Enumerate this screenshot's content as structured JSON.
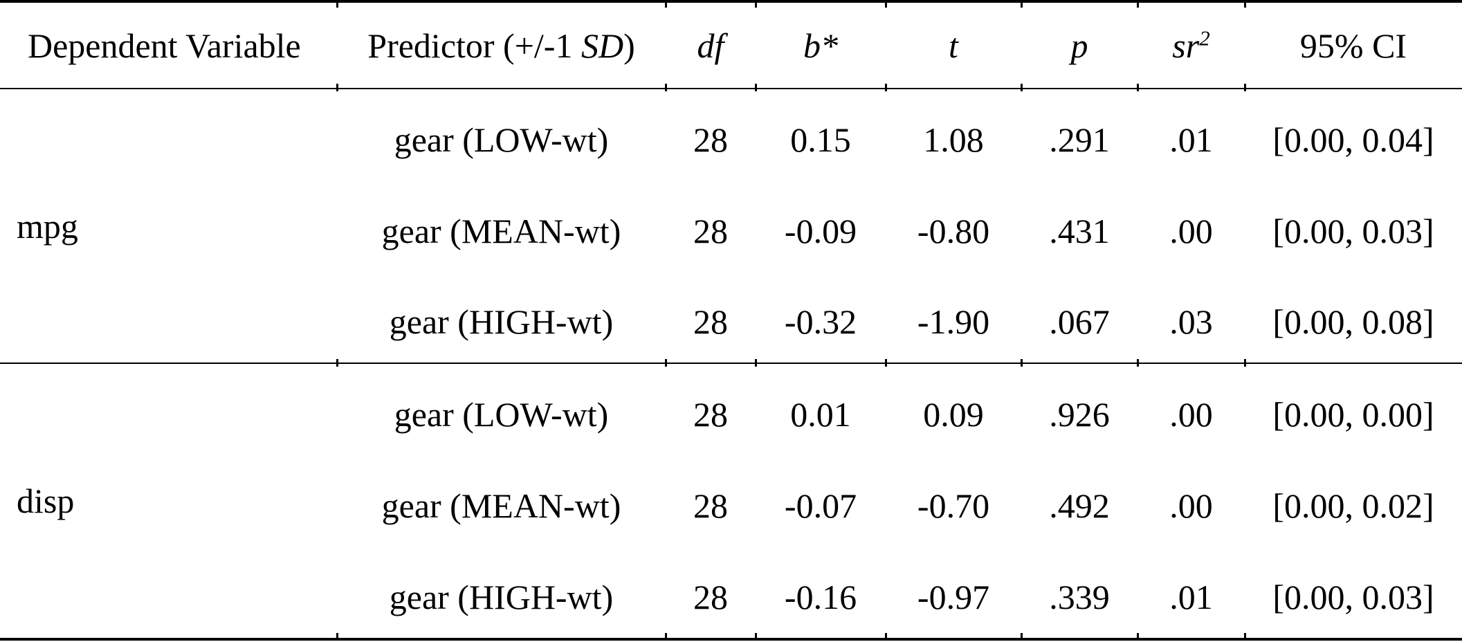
{
  "header": {
    "dependent_variable": "Dependent Variable",
    "predictor_prefix": "Predictor (+/-1 ",
    "predictor_sd": "SD",
    "predictor_suffix": ")",
    "df": "df",
    "b_star": "b*",
    "t": "t",
    "p": "p",
    "sr_base": "sr",
    "sr_sup": "2",
    "ci": "95% CI"
  },
  "groups": [
    {
      "dv": "mpg",
      "rows": [
        {
          "predictor": "gear (LOW-wt)",
          "df": "28",
          "b": "0.15",
          "t": "1.08",
          "p": ".291",
          "sr2": ".01",
          "ci": "[0.00, 0.04]"
        },
        {
          "predictor": "gear (MEAN-wt)",
          "df": "28",
          "b": "-0.09",
          "t": "-0.80",
          "p": ".431",
          "sr2": ".00",
          "ci": "[0.00, 0.03]"
        },
        {
          "predictor": "gear (HIGH-wt)",
          "df": "28",
          "b": "-0.32",
          "t": "-1.90",
          "p": ".067",
          "sr2": ".03",
          "ci": "[0.00, 0.08]"
        }
      ]
    },
    {
      "dv": "disp",
      "rows": [
        {
          "predictor": "gear (LOW-wt)",
          "df": "28",
          "b": "0.01",
          "t": "0.09",
          "p": ".926",
          "sr2": ".00",
          "ci": "[0.00, 0.00]"
        },
        {
          "predictor": "gear (MEAN-wt)",
          "df": "28",
          "b": "-0.07",
          "t": "-0.70",
          "p": ".492",
          "sr2": ".00",
          "ci": "[0.00, 0.02]"
        },
        {
          "predictor": "gear (HIGH-wt)",
          "df": "28",
          "b": "-0.16",
          "t": "-0.97",
          "p": ".339",
          "sr2": ".01",
          "ci": "[0.00, 0.03]"
        }
      ]
    }
  ]
}
